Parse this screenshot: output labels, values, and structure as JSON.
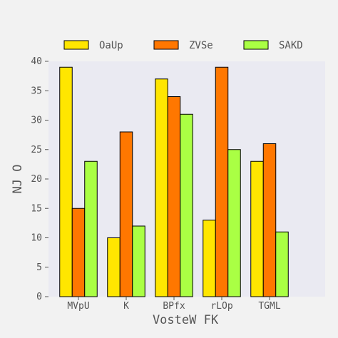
{
  "chart_data": {
    "type": "bar",
    "categories": [
      "MVpU",
      "K",
      "BPfx",
      "rLOp",
      "TGML"
    ],
    "series": [
      {
        "name": "OaUp",
        "values": [
          39,
          10,
          37,
          13,
          23
        ],
        "color": "#ffe600"
      },
      {
        "name": "ZVSe",
        "values": [
          15,
          28,
          34,
          39,
          26
        ],
        "color": "#ff7700"
      },
      {
        "name": "SAKD",
        "values": [
          23,
          12,
          31,
          25,
          11
        ],
        "color": "#aaff44"
      }
    ],
    "xlabel": "VosteW FK",
    "ylabel": "NJ O",
    "ylim": [
      0,
      40
    ],
    "yticks": [
      0,
      5,
      10,
      15,
      20,
      25,
      30,
      35,
      40
    ],
    "grid": false,
    "legend_position": "top",
    "colors": {
      "page_background": "#f2f2f2",
      "plot_background": "#eaeaf2",
      "bar_edge": "#000000",
      "text": "#555555"
    }
  }
}
